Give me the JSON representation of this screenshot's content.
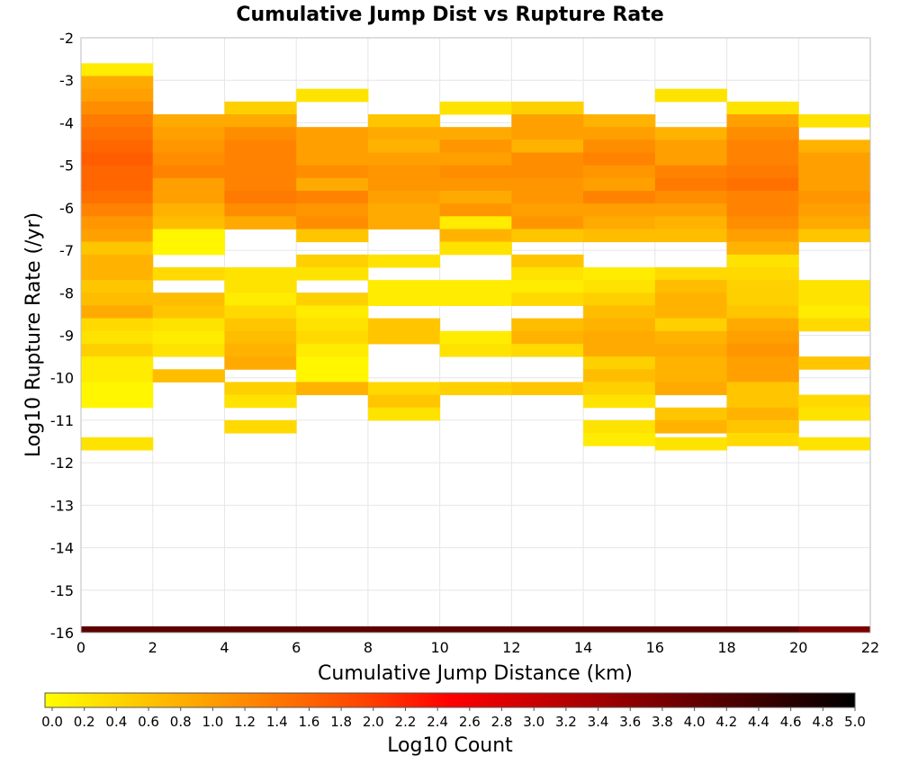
{
  "chart_data": {
    "type": "heatmap",
    "title": "Cumulative Jump Dist vs Rupture Rate",
    "xlabel": "Cumulative Jump Distance (km)",
    "ylabel": "Log10 Rupture Rate (/yr)",
    "xlim": [
      0,
      22
    ],
    "ylim": [
      -16,
      -2
    ],
    "x_ticks": [
      0,
      2,
      4,
      6,
      8,
      10,
      12,
      14,
      16,
      18,
      20,
      22
    ],
    "y_ticks": [
      -2,
      -3,
      -4,
      -5,
      -6,
      -7,
      -8,
      -9,
      -10,
      -11,
      -12,
      -13,
      -14,
      -15,
      -16
    ],
    "grid": true,
    "x_bin_width": 2,
    "y_bin_height": 0.3,
    "colorbar": {
      "label": "Log10 Count",
      "range": [
        0,
        5
      ],
      "ticks": [
        "0.0",
        "0.2",
        "0.4",
        "0.6",
        "0.8",
        "1.0",
        "1.2",
        "1.4",
        "1.6",
        "1.8",
        "2.0",
        "2.2",
        "2.4",
        "2.6",
        "2.8",
        "3.0",
        "3.2",
        "3.4",
        "3.6",
        "3.8",
        "4.0",
        "4.2",
        "4.4",
        "4.6",
        "4.8",
        "5.0"
      ],
      "colors": [
        "#ffff00",
        "#ffa000",
        "#ff4000",
        "#ff0000",
        "#800000",
        "#000000"
      ]
    },
    "columns": [
      {
        "x": 0,
        "cells": [
          [
            -2.75,
            0.2
          ],
          [
            -3.05,
            0.9
          ],
          [
            -3.35,
            1.0
          ],
          [
            -3.65,
            1.2
          ],
          [
            -3.95,
            1.4
          ],
          [
            -4.25,
            1.5
          ],
          [
            -4.55,
            1.6
          ],
          [
            -4.85,
            1.7
          ],
          [
            -5.15,
            1.6
          ],
          [
            -5.45,
            1.6
          ],
          [
            -5.75,
            1.5
          ],
          [
            -6.05,
            1.3
          ],
          [
            -6.35,
            1.1
          ],
          [
            -6.65,
            1.0
          ],
          [
            -6.95,
            0.6
          ],
          [
            -7.25,
            0.8
          ],
          [
            -7.55,
            0.8
          ],
          [
            -7.85,
            0.6
          ],
          [
            -8.15,
            0.7
          ],
          [
            -8.45,
            0.9
          ],
          [
            -8.75,
            0.4
          ],
          [
            -9.05,
            0.3
          ],
          [
            -9.35,
            0.5
          ],
          [
            -9.65,
            0.2
          ],
          [
            -9.95,
            0.2
          ],
          [
            -10.25,
            0.1
          ],
          [
            -10.55,
            0.1
          ],
          [
            -11.55,
            0.3
          ]
        ]
      },
      {
        "x": 2,
        "cells": [
          [
            -3.95,
            0.9
          ],
          [
            -4.25,
            1.0
          ],
          [
            -4.55,
            1.1
          ],
          [
            -4.85,
            1.2
          ],
          [
            -5.15,
            1.3
          ],
          [
            -5.45,
            1.0
          ],
          [
            -5.75,
            1.0
          ],
          [
            -6.05,
            0.8
          ],
          [
            -6.35,
            0.7
          ],
          [
            -6.65,
            0.1
          ],
          [
            -6.95,
            0.1
          ],
          [
            -7.55,
            0.4
          ],
          [
            -8.15,
            0.7
          ],
          [
            -8.45,
            0.6
          ],
          [
            -8.75,
            0.3
          ],
          [
            -9.05,
            0.2
          ],
          [
            -9.35,
            0.3
          ],
          [
            -9.95,
            0.7
          ]
        ]
      },
      {
        "x": 4,
        "cells": [
          [
            -3.65,
            0.5
          ],
          [
            -3.95,
            0.9
          ],
          [
            -4.25,
            1.2
          ],
          [
            -4.55,
            1.3
          ],
          [
            -4.85,
            1.3
          ],
          [
            -5.15,
            1.3
          ],
          [
            -5.45,
            1.3
          ],
          [
            -5.75,
            1.4
          ],
          [
            -6.05,
            1.2
          ],
          [
            -6.35,
            0.9
          ],
          [
            -7.55,
            0.3
          ],
          [
            -7.85,
            0.3
          ],
          [
            -8.15,
            0.2
          ],
          [
            -8.45,
            0.4
          ],
          [
            -8.75,
            0.6
          ],
          [
            -9.05,
            0.7
          ],
          [
            -9.35,
            0.8
          ],
          [
            -9.65,
            0.9
          ],
          [
            -10.25,
            0.5
          ],
          [
            -10.55,
            0.3
          ],
          [
            -11.15,
            0.4
          ]
        ]
      },
      {
        "x": 6,
        "cells": [
          [
            -3.35,
            0.3
          ],
          [
            -4.25,
            1.0
          ],
          [
            -4.55,
            1.0
          ],
          [
            -4.85,
            1.0
          ],
          [
            -5.15,
            1.2
          ],
          [
            -5.45,
            0.9
          ],
          [
            -5.75,
            1.3
          ],
          [
            -6.05,
            1.1
          ],
          [
            -6.35,
            1.2
          ],
          [
            -6.65,
            0.6
          ],
          [
            -7.25,
            0.5
          ],
          [
            -7.55,
            0.3
          ],
          [
            -8.15,
            0.5
          ],
          [
            -8.45,
            0.2
          ],
          [
            -8.75,
            0.3
          ],
          [
            -9.05,
            0.4
          ],
          [
            -9.35,
            0.2
          ],
          [
            -9.65,
            0.1
          ],
          [
            -9.95,
            0.1
          ],
          [
            -10.25,
            0.8
          ]
        ]
      },
      {
        "x": 8,
        "cells": [
          [
            -3.95,
            0.6
          ],
          [
            -4.25,
            0.9
          ],
          [
            -4.55,
            0.8
          ],
          [
            -4.85,
            1.0
          ],
          [
            -5.15,
            1.1
          ],
          [
            -5.45,
            1.1
          ],
          [
            -5.75,
            1.0
          ],
          [
            -6.05,
            0.9
          ],
          [
            -6.35,
            0.9
          ],
          [
            -7.25,
            0.3
          ],
          [
            -7.85,
            0.2
          ],
          [
            -8.15,
            0.2
          ],
          [
            -8.75,
            0.6
          ],
          [
            -9.05,
            0.6
          ],
          [
            -10.25,
            0.4
          ],
          [
            -10.55,
            0.6
          ],
          [
            -10.85,
            0.3
          ]
        ]
      },
      {
        "x": 10,
        "cells": [
          [
            -3.65,
            0.3
          ],
          [
            -4.25,
            0.9
          ],
          [
            -4.55,
            1.1
          ],
          [
            -4.85,
            1.0
          ],
          [
            -5.15,
            1.2
          ],
          [
            -5.45,
            1.1
          ],
          [
            -5.75,
            0.9
          ],
          [
            -6.05,
            1.1
          ],
          [
            -6.35,
            0.2
          ],
          [
            -6.65,
            0.8
          ],
          [
            -6.95,
            0.3
          ],
          [
            -7.85,
            0.2
          ],
          [
            -8.15,
            0.2
          ],
          [
            -9.05,
            0.2
          ],
          [
            -9.35,
            0.3
          ],
          [
            -10.25,
            0.5
          ]
        ]
      },
      {
        "x": 12,
        "cells": [
          [
            -3.65,
            0.5
          ],
          [
            -3.95,
            1.0
          ],
          [
            -4.25,
            1.0
          ],
          [
            -4.55,
            0.8
          ],
          [
            -4.85,
            1.2
          ],
          [
            -5.15,
            1.2
          ],
          [
            -5.45,
            1.1
          ],
          [
            -5.75,
            1.1
          ],
          [
            -6.05,
            1.0
          ],
          [
            -6.35,
            1.1
          ],
          [
            -6.65,
            0.6
          ],
          [
            -7.25,
            0.6
          ],
          [
            -7.55,
            0.3
          ],
          [
            -7.85,
            0.2
          ],
          [
            -8.15,
            0.4
          ],
          [
            -8.75,
            0.7
          ],
          [
            -9.05,
            0.8
          ],
          [
            -9.35,
            0.4
          ],
          [
            -10.25,
            0.6
          ]
        ]
      },
      {
        "x": 14,
        "cells": [
          [
            -3.95,
            0.8
          ],
          [
            -4.25,
            1.0
          ],
          [
            -4.55,
            1.2
          ],
          [
            -4.85,
            1.3
          ],
          [
            -5.15,
            1.1
          ],
          [
            -5.45,
            1.0
          ],
          [
            -5.75,
            1.3
          ],
          [
            -6.05,
            1.0
          ],
          [
            -6.35,
            0.9
          ],
          [
            -6.65,
            0.7
          ],
          [
            -7.55,
            0.2
          ],
          [
            -7.85,
            0.3
          ],
          [
            -8.15,
            0.5
          ],
          [
            -8.45,
            0.7
          ],
          [
            -8.75,
            0.8
          ],
          [
            -9.05,
            0.9
          ],
          [
            -9.35,
            0.9
          ],
          [
            -9.65,
            0.5
          ],
          [
            -9.95,
            0.7
          ],
          [
            -10.25,
            0.5
          ],
          [
            -10.55,
            0.3
          ],
          [
            -11.15,
            0.3
          ],
          [
            -11.45,
            0.2
          ]
        ]
      },
      {
        "x": 16,
        "cells": [
          [
            -3.35,
            0.3
          ],
          [
            -4.25,
            0.8
          ],
          [
            -4.55,
            1.0
          ],
          [
            -4.85,
            1.0
          ],
          [
            -5.15,
            1.3
          ],
          [
            -5.45,
            1.4
          ],
          [
            -5.75,
            1.2
          ],
          [
            -6.05,
            1.0
          ],
          [
            -6.35,
            0.8
          ],
          [
            -6.65,
            0.7
          ],
          [
            -7.55,
            0.4
          ],
          [
            -7.85,
            0.7
          ],
          [
            -8.15,
            0.8
          ],
          [
            -8.45,
            0.8
          ],
          [
            -8.75,
            0.5
          ],
          [
            -9.05,
            0.8
          ],
          [
            -9.35,
            0.9
          ],
          [
            -9.65,
            0.8
          ],
          [
            -9.95,
            0.8
          ],
          [
            -10.25,
            0.9
          ],
          [
            -10.85,
            0.6
          ],
          [
            -11.15,
            0.8
          ],
          [
            -11.55,
            0.3
          ]
        ]
      },
      {
        "x": 18,
        "cells": [
          [
            -3.65,
            0.3
          ],
          [
            -3.95,
            1.0
          ],
          [
            -4.25,
            1.2
          ],
          [
            -4.55,
            1.3
          ],
          [
            -4.85,
            1.3
          ],
          [
            -5.15,
            1.4
          ],
          [
            -5.45,
            1.5
          ],
          [
            -5.75,
            1.3
          ],
          [
            -6.05,
            1.3
          ],
          [
            -6.35,
            1.2
          ],
          [
            -6.65,
            1.0
          ],
          [
            -6.95,
            0.8
          ],
          [
            -7.25,
            0.3
          ],
          [
            -7.55,
            0.4
          ],
          [
            -7.85,
            0.5
          ],
          [
            -8.15,
            0.5
          ],
          [
            -8.45,
            0.6
          ],
          [
            -8.75,
            0.9
          ],
          [
            -9.05,
            1.0
          ],
          [
            -9.35,
            1.1
          ],
          [
            -9.65,
            1.0
          ],
          [
            -9.95,
            1.0
          ],
          [
            -10.25,
            0.6
          ],
          [
            -10.55,
            0.6
          ],
          [
            -10.85,
            0.8
          ],
          [
            -11.15,
            0.6
          ],
          [
            -11.45,
            0.4
          ]
        ]
      },
      {
        "x": 20,
        "cells": [
          [
            -3.95,
            0.3
          ],
          [
            -4.55,
            0.8
          ],
          [
            -4.85,
            1.0
          ],
          [
            -5.15,
            1.0
          ],
          [
            -5.45,
            1.0
          ],
          [
            -5.75,
            1.1
          ],
          [
            -6.05,
            1.0
          ],
          [
            -6.35,
            0.9
          ],
          [
            -6.65,
            0.6
          ],
          [
            -7.85,
            0.3
          ],
          [
            -8.15,
            0.3
          ],
          [
            -8.45,
            0.2
          ],
          [
            -8.75,
            0.4
          ],
          [
            -9.65,
            0.6
          ],
          [
            -10.55,
            0.4
          ],
          [
            -10.85,
            0.3
          ],
          [
            -11.55,
            0.3
          ]
        ]
      }
    ],
    "bottom_band": [
      [
        -16,
        4.1
      ],
      [
        -16,
        4.1
      ],
      [
        -16,
        4.1
      ],
      [
        -16,
        4.1
      ],
      [
        -16,
        4.1
      ],
      [
        -16,
        4.1
      ],
      [
        -16,
        4.1
      ],
      [
        -16,
        4.1
      ],
      [
        -16,
        4.1
      ],
      [
        -16,
        4.1
      ],
      [
        -16,
        3.8
      ]
    ]
  }
}
